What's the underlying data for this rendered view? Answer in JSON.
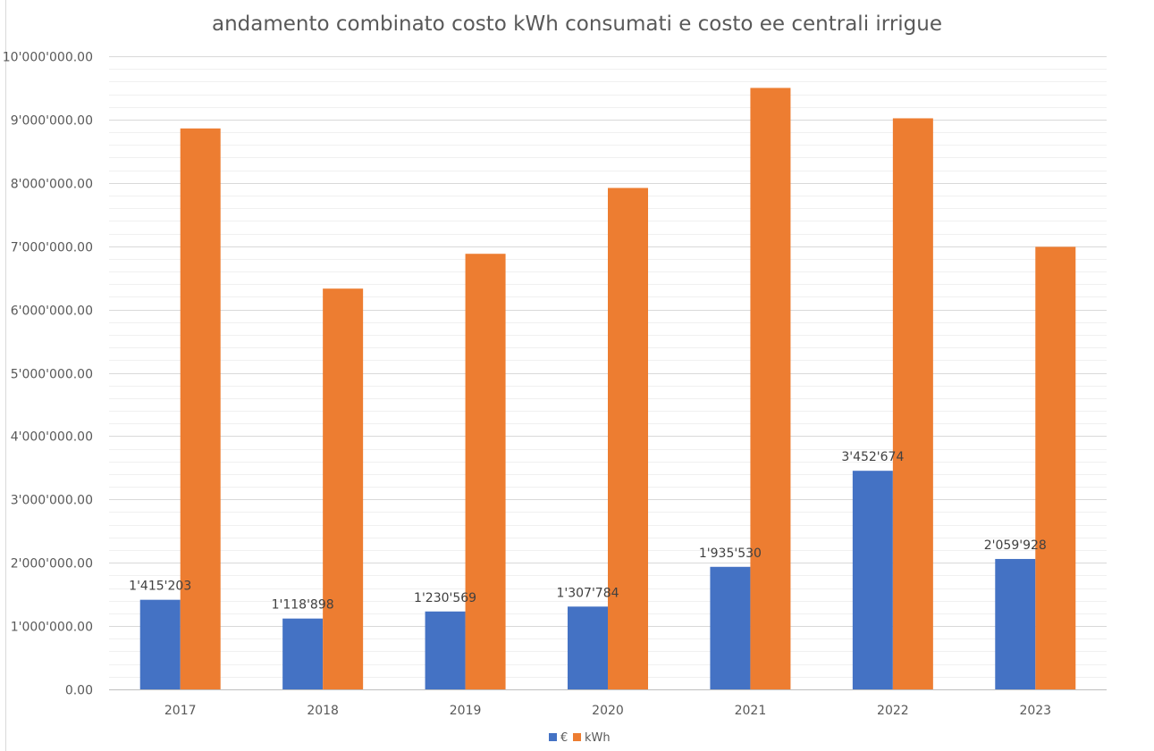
{
  "chart_data": {
    "type": "bar",
    "title": "andamento combinato costo kWh consumati e costo ee centrali irrigue",
    "categories": [
      "2017",
      "2018",
      "2019",
      "2020",
      "2021",
      "2022",
      "2023"
    ],
    "series": [
      {
        "name": "€",
        "color": "#4472c4",
        "values": [
          1415203,
          1118898,
          1230569,
          1307784,
          1935530,
          3452674,
          2059928
        ],
        "data_labels": [
          "1'415'203",
          "1'118'898",
          "1'230'569",
          "1'307'784",
          "1'935'530",
          "3'452'674",
          "2'059'928"
        ]
      },
      {
        "name": "kWh",
        "color": "#ed7d31",
        "values": [
          8860000,
          6330000,
          6880000,
          7920000,
          9500000,
          9020000,
          6990000
        ]
      }
    ],
    "ylim": [
      0,
      10000000
    ],
    "y_ticks": [
      0,
      1000000,
      2000000,
      3000000,
      4000000,
      5000000,
      6000000,
      7000000,
      8000000,
      9000000,
      10000000
    ],
    "y_tick_labels": [
      "0.00",
      "1'000'000.00",
      "2'000'000.00",
      "3'000'000.00",
      "4'000'000.00",
      "5'000'000.00",
      "6'000'000.00",
      "7'000'000.00",
      "8'000'000.00",
      "9'000'000.00",
      "10'000'000.00"
    ],
    "grid": true,
    "legend_position": "bottom"
  }
}
